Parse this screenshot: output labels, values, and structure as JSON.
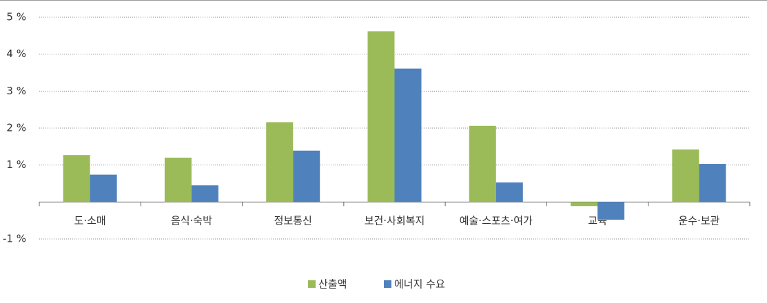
{
  "chart_data": {
    "type": "bar",
    "categories": [
      "도·소매",
      "음식·숙박",
      "정보통신",
      "보건·사회복지",
      "예술·스포츠·여가",
      "교육",
      "운수·보관"
    ],
    "series": [
      {
        "name": "산출액",
        "color": "#9bbb59",
        "values": [
          1.27,
          1.2,
          2.16,
          4.62,
          2.06,
          -0.11,
          1.42
        ]
      },
      {
        "name": "에너지 수요",
        "color": "#4f81bd",
        "values": [
          0.74,
          0.45,
          1.39,
          3.61,
          0.53,
          -0.48,
          1.03
        ]
      }
    ],
    "ylim": [
      -1,
      5
    ],
    "yticks": [
      {
        "value": -1,
        "label": "-1 %"
      },
      {
        "value": 1,
        "label": "1 %"
      },
      {
        "value": 2,
        "label": "2 %"
      },
      {
        "value": 3,
        "label": "3 %"
      },
      {
        "value": 4,
        "label": "4 %"
      },
      {
        "value": 5,
        "label": "5 %"
      }
    ],
    "grid": true
  }
}
